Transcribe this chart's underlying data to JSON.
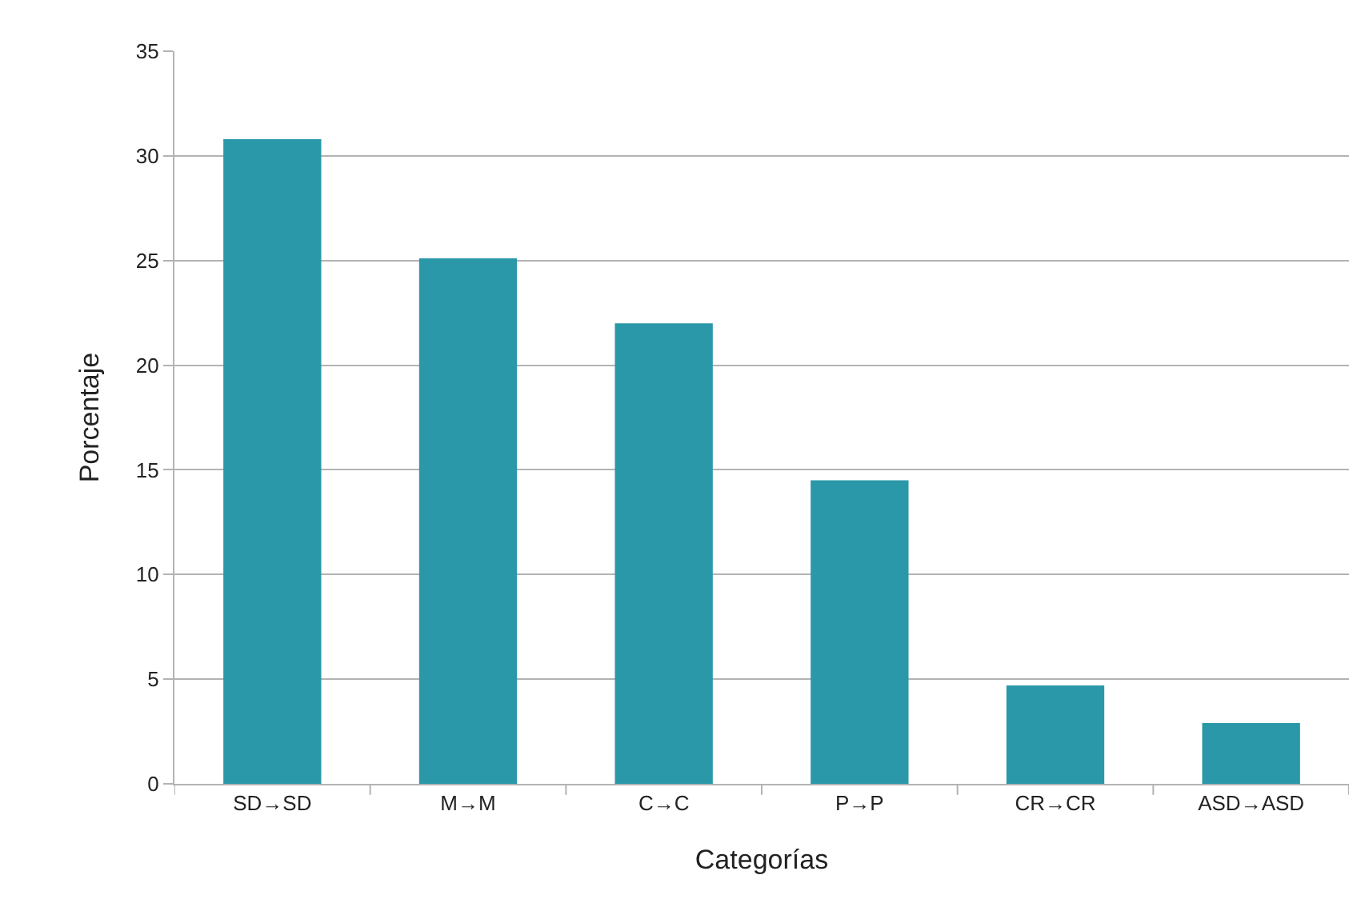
{
  "chart_data": {
    "type": "bar",
    "xlabel": "Categorías",
    "ylabel": "Porcentaje",
    "categories": [
      "SD→SD",
      "M→M",
      "C→C",
      "P→P",
      "CR→CR",
      "ASD→ASD"
    ],
    "values": [
      30.8,
      25.1,
      22.0,
      14.5,
      4.7,
      2.9
    ],
    "color": "#2a98a8",
    "ylim": [
      0,
      35
    ],
    "yticks": [
      0,
      5,
      10,
      15,
      20,
      25,
      30,
      35
    ],
    "grid": "y",
    "legend": false
  }
}
